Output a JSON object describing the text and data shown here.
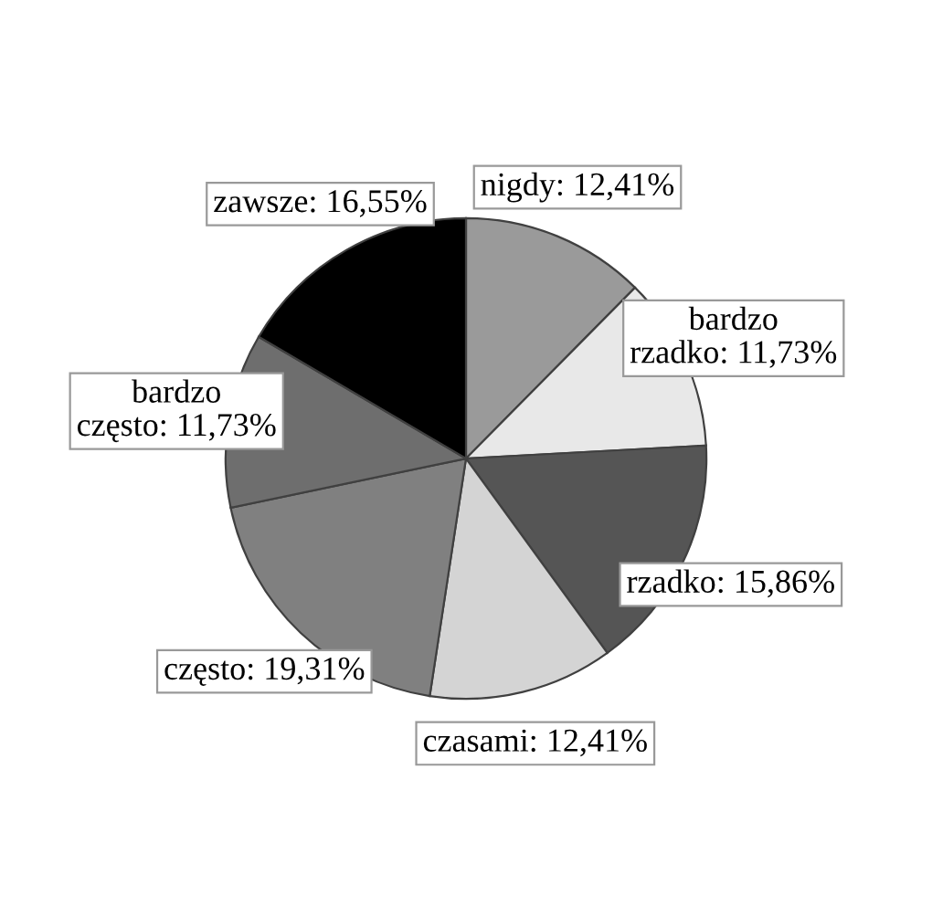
{
  "chart_data": {
    "type": "pie",
    "categories": [
      "nigdy",
      "bardzo rzadko",
      "rzadko",
      "czasami",
      "często",
      "bardzo często",
      "zawsze"
    ],
    "values": [
      12.41,
      11.73,
      15.86,
      12.41,
      19.31,
      11.73,
      16.55
    ],
    "value_labels": [
      "12,41%",
      "11,73%",
      "15,86%",
      "12,41%",
      "19,31%",
      "11,73%",
      "16,55%"
    ],
    "colors": [
      "#9a9a9a",
      "#e8e8e8",
      "#555555",
      "#d4d4d4",
      "#808080",
      "#6e6e6e",
      "#000000"
    ]
  }
}
